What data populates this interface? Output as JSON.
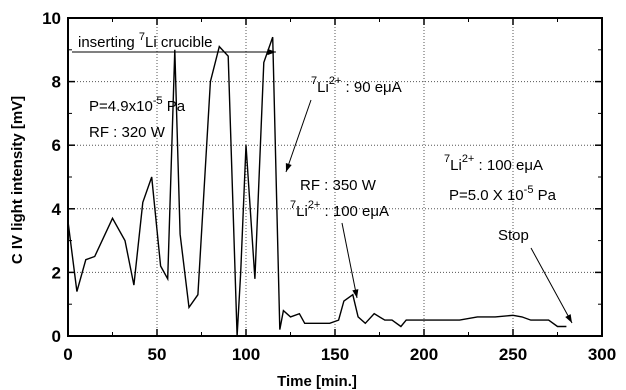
{
  "chart_data": {
    "type": "line",
    "xlabel": "Time  [min.]",
    "ylabel": "C IV light intensity  [mV]",
    "xlim": [
      0,
      300
    ],
    "ylim": [
      0,
      10
    ],
    "x_ticks": [
      "0",
      "50",
      "100",
      "150",
      "200",
      "250",
      "300"
    ],
    "y_ticks": [
      "0",
      "2",
      "4",
      "6",
      "8",
      "10"
    ],
    "x_tick_values": [
      0,
      50,
      100,
      150,
      200,
      250,
      300
    ],
    "y_tick_values": [
      0,
      2,
      4,
      6,
      8,
      10
    ],
    "grid": "dotted",
    "series": [
      {
        "x": [
          0,
          5,
          10,
          15,
          25,
          32,
          37,
          42,
          47,
          52,
          56,
          60,
          63,
          68,
          73,
          80,
          85,
          90,
          95,
          97,
          100,
          105,
          110,
          115,
          119,
          121,
          125,
          130,
          133,
          137,
          142,
          147,
          152,
          155,
          160,
          163,
          167,
          172,
          178,
          182,
          187,
          190,
          195,
          200,
          210,
          220,
          230,
          240,
          250,
          255,
          260,
          270,
          275,
          280
        ],
        "y": [
          3.6,
          1.4,
          2.4,
          2.5,
          3.7,
          3.0,
          1.6,
          4.2,
          5.0,
          2.2,
          1.8,
          9.0,
          3.2,
          0.9,
          1.3,
          8.0,
          9.1,
          8.8,
          0.0,
          2.0,
          6.0,
          1.8,
          8.6,
          9.4,
          0.2,
          0.8,
          0.6,
          0.7,
          0.4,
          0.4,
          0.4,
          0.4,
          0.5,
          1.1,
          1.3,
          0.6,
          0.4,
          0.7,
          0.5,
          0.5,
          0.3,
          0.5,
          0.5,
          0.5,
          0.5,
          0.5,
          0.6,
          0.6,
          0.65,
          0.6,
          0.5,
          0.5,
          0.3,
          0.3
        ]
      }
    ],
    "annotations": {
      "inserting_pre": "inserting ",
      "inserting_sup": "7",
      "inserting_post": "Li crucible",
      "pressure1_pre": "P=4.9x10",
      "pressure1_sup": "-5",
      "pressure1_post": " Pa",
      "rf1": "RF : 320 W",
      "li90_sup1": "7",
      "li90_mid": "Li",
      "li90_sup2": "2+",
      "li90_post": " : 90 eμA",
      "rf2": "RF : 350 W",
      "li100a_sup1": "7",
      "li100a_mid": "Li",
      "li100a_sup2": "2+",
      "li100a_post": " : 100 eμA",
      "li100b_sup1": "7",
      "li100b_mid": "Li",
      "li100b_sup2": "2+",
      "li100b_post": " : 100 eμA",
      "pressure2_pre": "P=5.0 X 10",
      "pressure2_sup": "-5",
      "pressure2_post": " Pa",
      "stop": "Stop"
    }
  }
}
